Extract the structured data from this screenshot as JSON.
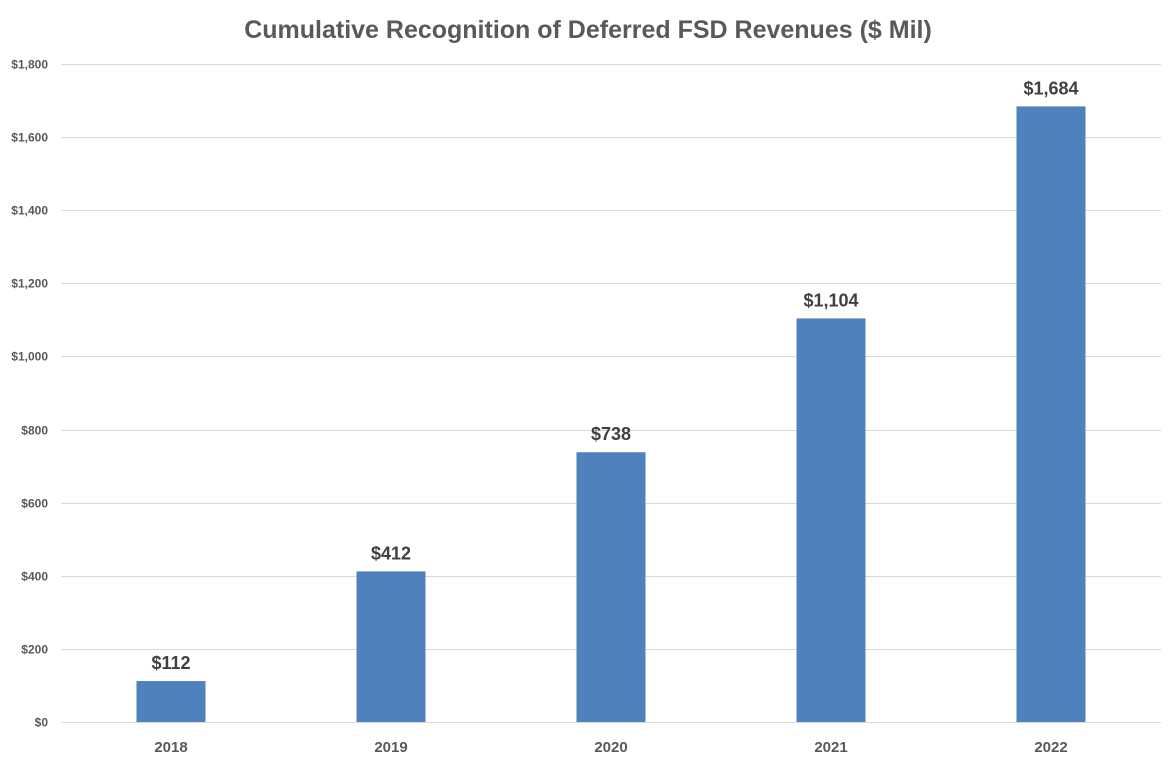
{
  "chart_data": {
    "type": "bar",
    "title": "Cumulative Recognition of Deferred FSD Revenues ($ Mil)",
    "xlabel": "",
    "ylabel": "",
    "categories": [
      "2018",
      "2019",
      "2020",
      "2021",
      "2022"
    ],
    "values": [
      112,
      412,
      738,
      1104,
      1684
    ],
    "data_labels": [
      "$112",
      "$412",
      "$738",
      "$1,104",
      "$1,684"
    ],
    "ylim": [
      0,
      1800
    ],
    "y_ticks": [
      0,
      200,
      400,
      600,
      800,
      1000,
      1200,
      1400,
      1600,
      1800
    ],
    "y_tick_labels": [
      "$0",
      "$200",
      "$400",
      "$600",
      "$800",
      "$1,000",
      "$1,200",
      "$1,400",
      "$1,600",
      "$1,800"
    ],
    "grid": true,
    "legend": "none",
    "bar_color": "#4f81bd",
    "gridline_color": "#d9d9d9",
    "text_color": "#595959"
  }
}
